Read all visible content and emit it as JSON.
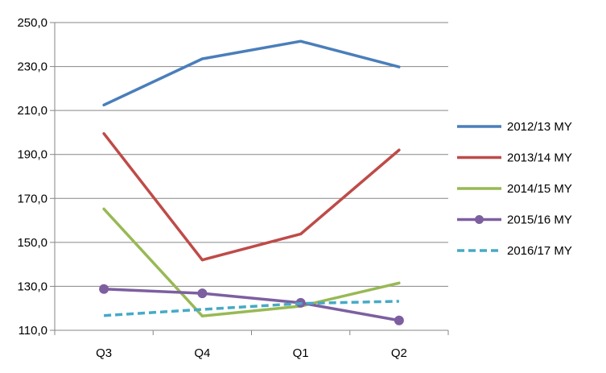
{
  "chart_data": {
    "type": "line",
    "title": "",
    "xlabel": "",
    "ylabel": "",
    "categories": [
      "Q3",
      "Q4",
      "Q1",
      "Q2"
    ],
    "ylim": [
      110,
      250
    ],
    "yticks": [
      "110,0",
      "130,0",
      "150,0",
      "170,0",
      "190,0",
      "210,0",
      "230,0",
      "250,0"
    ],
    "grid": "horizontal",
    "legend_position": "right",
    "series": [
      {
        "name": "2012/13 MY",
        "values": [
          212.5,
          233.5,
          241.5,
          229.8
        ],
        "color": "#4a7ebb",
        "style": "solid",
        "marker": "none"
      },
      {
        "name": "2013/14 MY",
        "values": [
          199.5,
          142.0,
          153.8,
          192.0
        ],
        "color": "#be4b48",
        "style": "solid",
        "marker": "none"
      },
      {
        "name": "2014/15 MY",
        "values": [
          165.2,
          116.5,
          121.0,
          131.5
        ],
        "color": "#98b954",
        "style": "solid",
        "marker": "none"
      },
      {
        "name": "2015/16 MY",
        "values": [
          128.8,
          126.8,
          122.5,
          114.5
        ],
        "color": "#7d5fa0",
        "style": "solid",
        "marker": "circle"
      },
      {
        "name": "2016/17 MY",
        "values": [
          116.7,
          119.5,
          122.2,
          123.2
        ],
        "color": "#46aac5",
        "style": "dashed",
        "marker": "none"
      }
    ]
  }
}
